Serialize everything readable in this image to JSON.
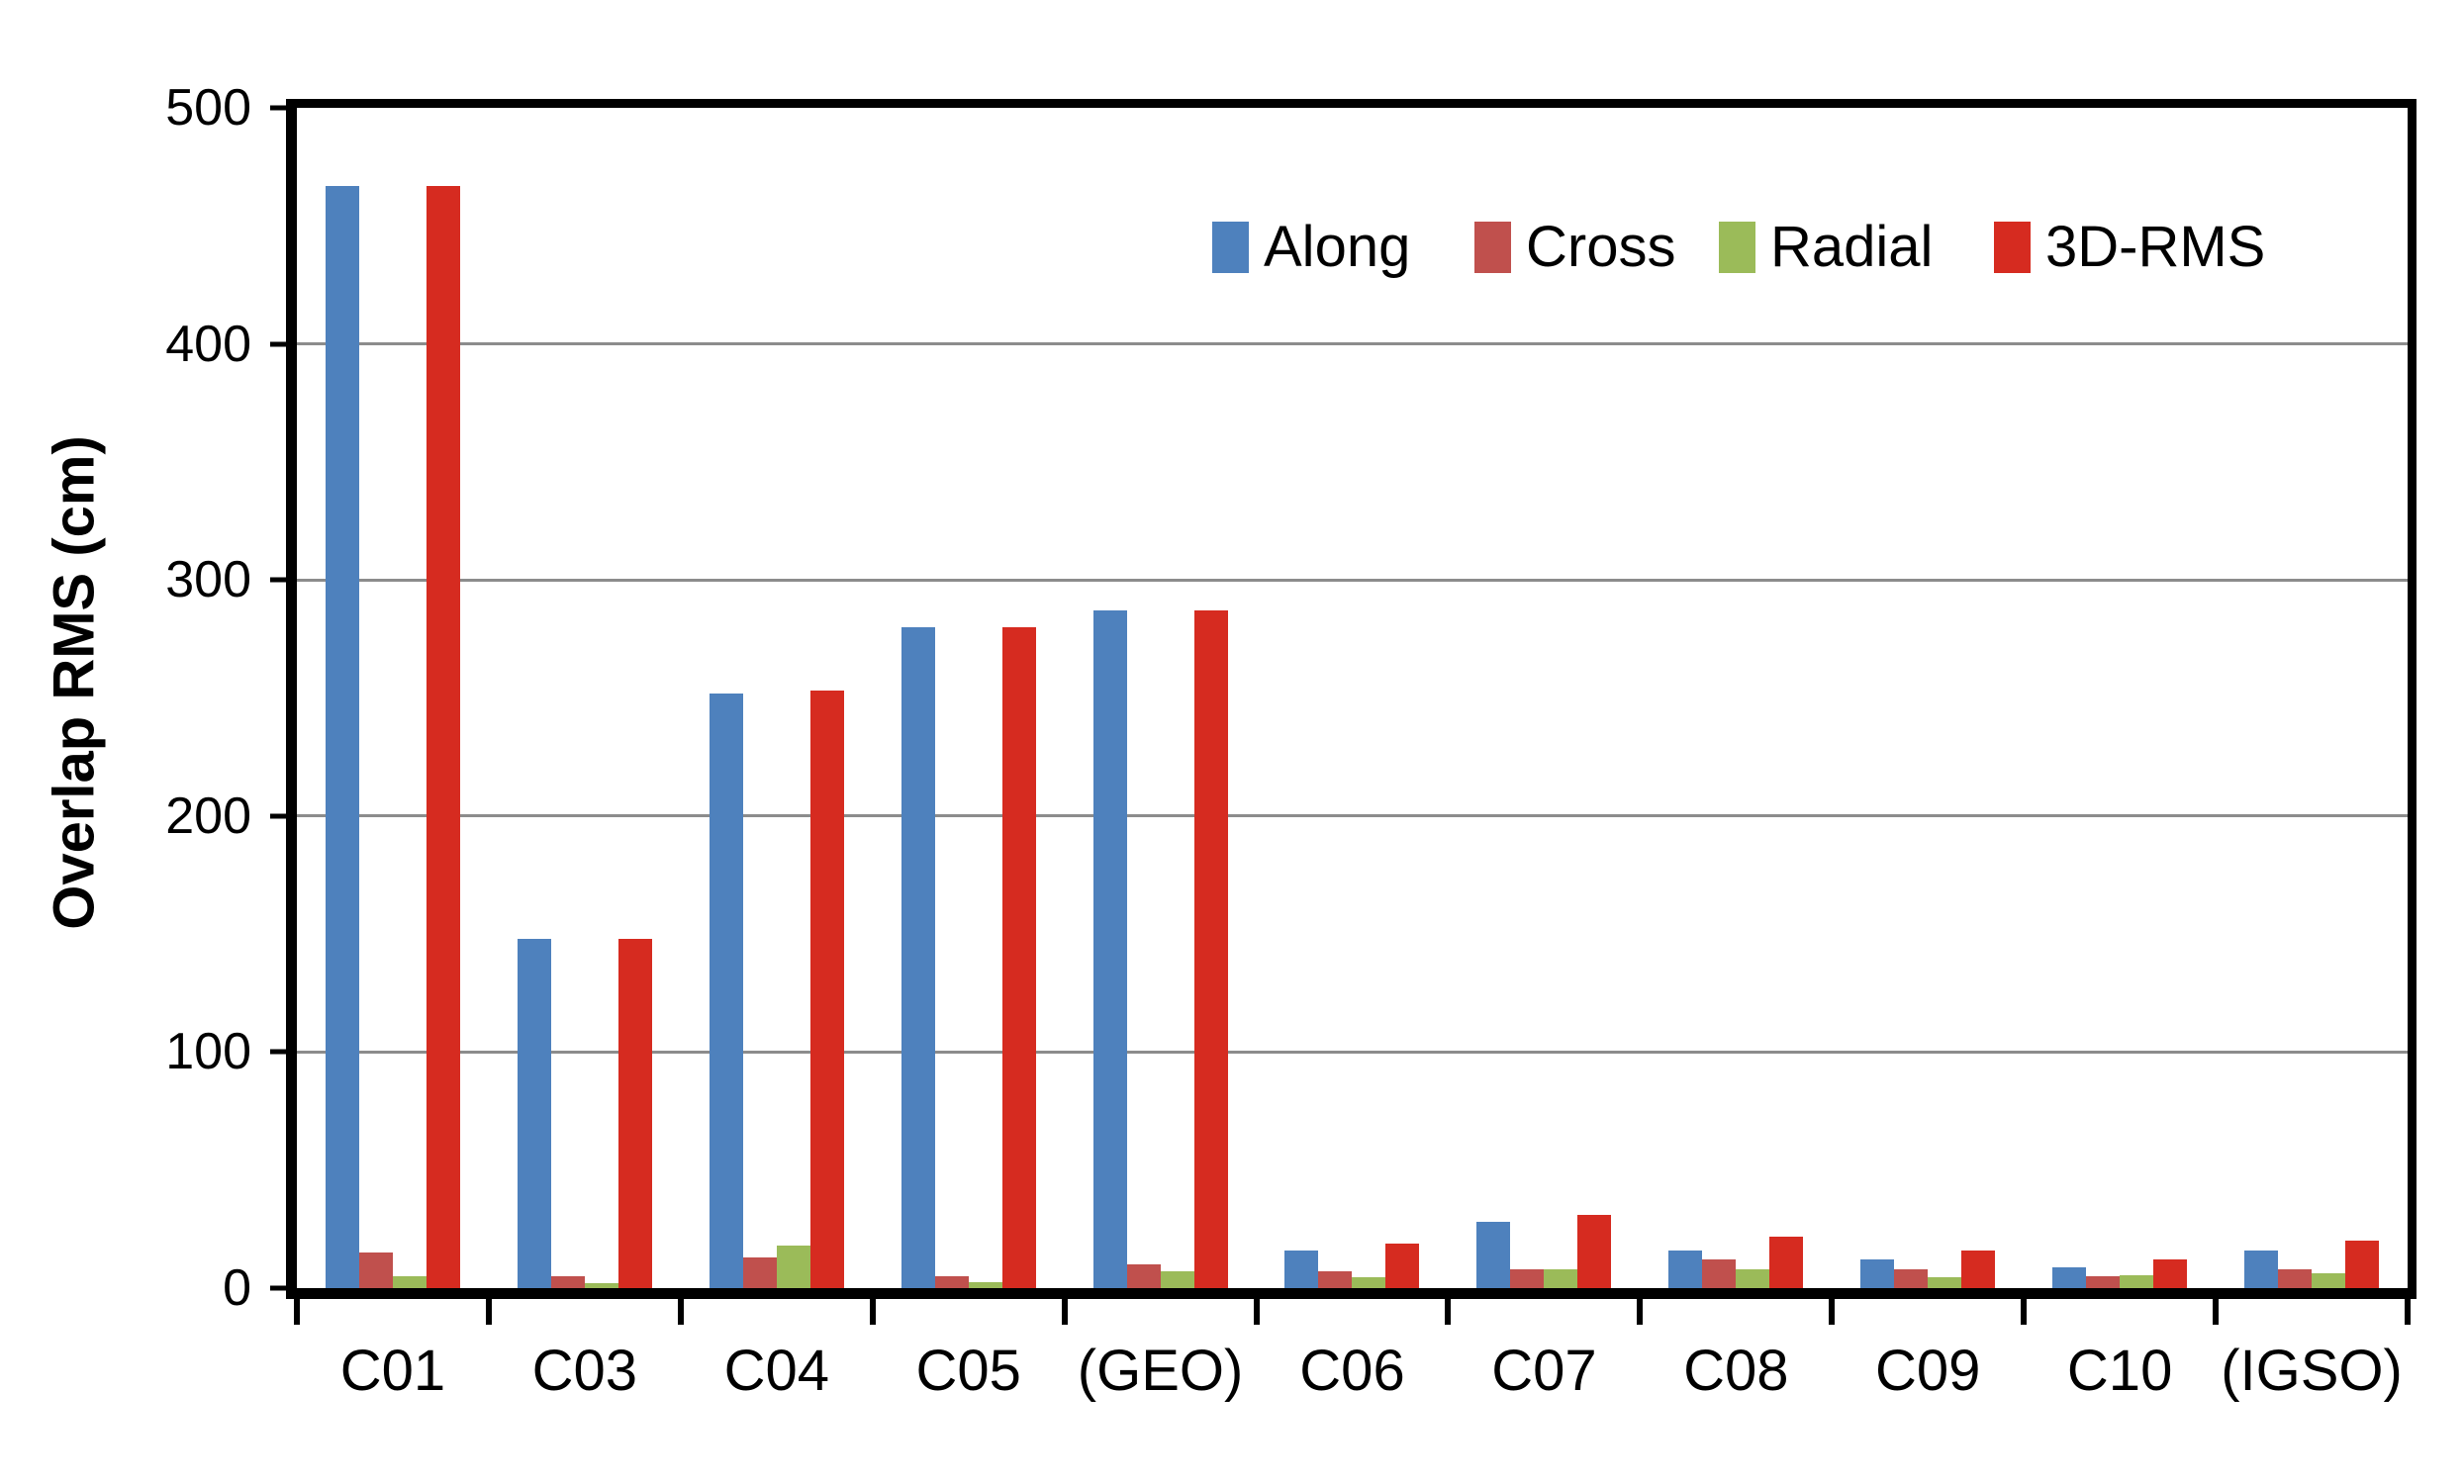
{
  "chart_data": {
    "type": "bar",
    "title": "",
    "ylabel": "Overlap RMS (cm)",
    "xlabel": "",
    "ylim": [
      0,
      500
    ],
    "yticks": [
      0,
      100,
      200,
      300,
      400,
      500
    ],
    "grid": "horizontal gray lines at each 100",
    "legend_position": "inside plot, upper right, horizontal row",
    "categories": [
      "C01",
      "C03",
      "C04",
      "C05",
      "(GEO)",
      "C06",
      "C07",
      "C08",
      "C09",
      "C10",
      "(IGSO)"
    ],
    "series": [
      {
        "name": "Along",
        "color": "#4E81BD",
        "values": [
          467,
          148,
          252,
          280,
          287,
          16,
          28,
          16,
          12,
          9,
          16
        ]
      },
      {
        "name": "Cross",
        "color": "#C0504D",
        "values": [
          15,
          5,
          13,
          5,
          10,
          7,
          8,
          12,
          8,
          5,
          8
        ]
      },
      {
        "name": "Radial",
        "color": "#9BBB59",
        "values": [
          5,
          2,
          18,
          2.5,
          7,
          4.5,
          8,
          8,
          4.5,
          5.5,
          6.5
        ]
      },
      {
        "name": "3D-RMS",
        "color": "#D62B20",
        "values": [
          467,
          148,
          253,
          280,
          287,
          19,
          31,
          22,
          16,
          12,
          20
        ]
      }
    ]
  },
  "style": {
    "background": "#FFFFFF",
    "axis_color": "#000000",
    "gridline_color": "#8C8C8C",
    "text_color": "#000000"
  }
}
